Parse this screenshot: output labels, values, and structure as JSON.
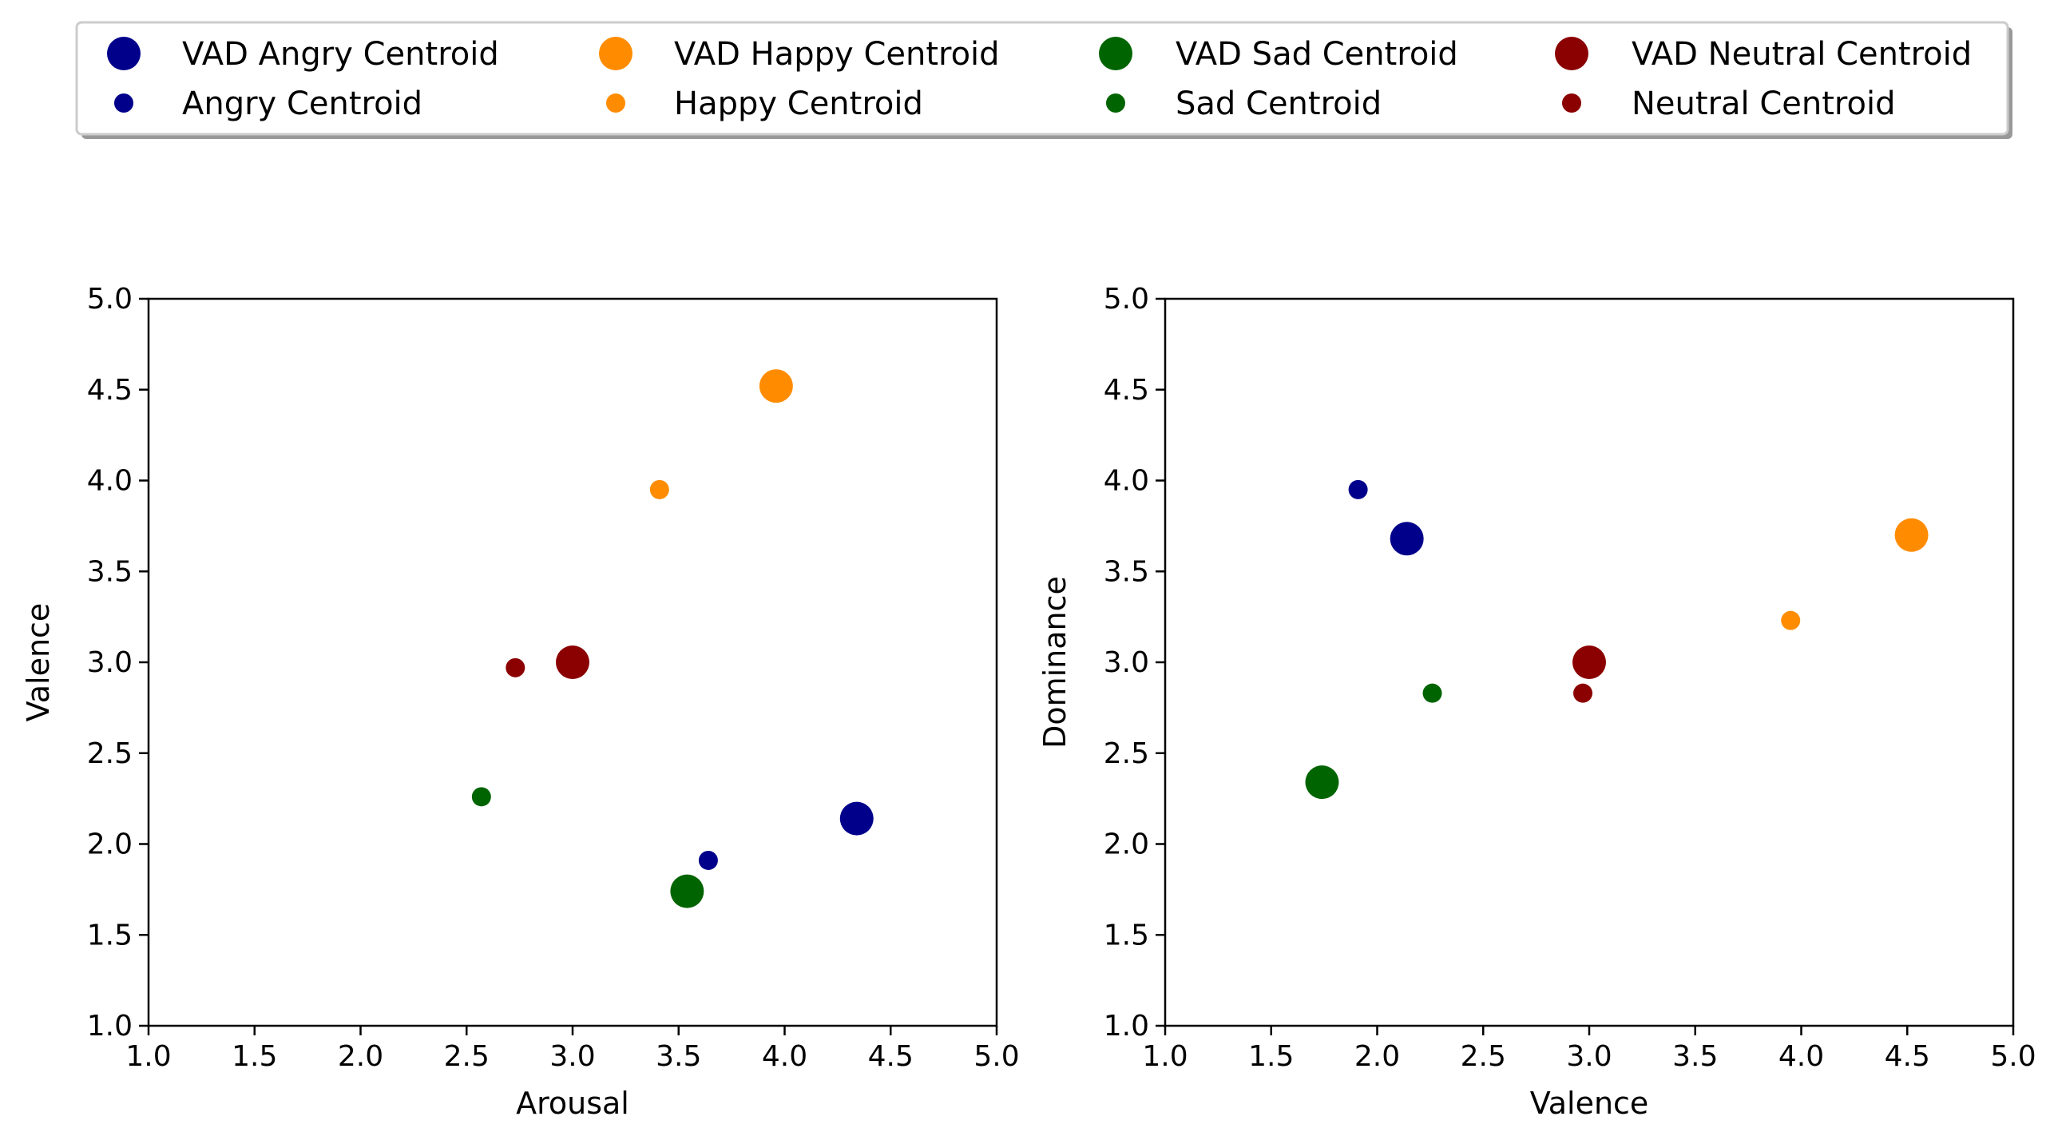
{
  "legend": {
    "items": [
      {
        "label": "VAD Angry Centroid",
        "color": "#00008b",
        "marker": "large"
      },
      {
        "label": "VAD Happy Centroid",
        "color": "#ff8c00",
        "marker": "large"
      },
      {
        "label": "VAD Sad Centroid",
        "color": "#006400",
        "marker": "large"
      },
      {
        "label": "VAD Neutral Centroid",
        "color": "#8b0000",
        "marker": "large"
      },
      {
        "label": "Angry Centroid",
        "color": "#00008b",
        "marker": "small"
      },
      {
        "label": "Happy Centroid",
        "color": "#ff8c00",
        "marker": "small"
      },
      {
        "label": "Sad Centroid",
        "color": "#006400",
        "marker": "small"
      },
      {
        "label": "Neutral Centroid",
        "color": "#8b0000",
        "marker": "small"
      }
    ]
  },
  "chart_data": [
    {
      "type": "scatter",
      "xlabel": "Arousal",
      "ylabel": "Valence",
      "xlim": [
        1.0,
        5.0
      ],
      "ylim": [
        1.0,
        5.0
      ],
      "xticks": [
        "1.0",
        "1.5",
        "2.0",
        "2.5",
        "3.0",
        "3.5",
        "4.0",
        "4.5",
        "5.0"
      ],
      "yticks": [
        "1.0",
        "1.5",
        "2.0",
        "2.5",
        "3.0",
        "3.5",
        "4.0",
        "4.5",
        "5.0"
      ],
      "grid": false,
      "series": [
        {
          "name": "VAD Angry Centroid",
          "marker": "large",
          "color": "#00008b",
          "x": 4.34,
          "y": 2.14
        },
        {
          "name": "VAD Happy Centroid",
          "marker": "large",
          "color": "#ff8c00",
          "x": 3.96,
          "y": 4.52
        },
        {
          "name": "VAD Sad Centroid",
          "marker": "large",
          "color": "#006400",
          "x": 3.54,
          "y": 1.74
        },
        {
          "name": "VAD Neutral Centroid",
          "marker": "large",
          "color": "#8b0000",
          "x": 3.0,
          "y": 3.0
        },
        {
          "name": "Angry Centroid",
          "marker": "small",
          "color": "#00008b",
          "x": 3.64,
          "y": 1.91
        },
        {
          "name": "Happy Centroid",
          "marker": "small",
          "color": "#ff8c00",
          "x": 3.41,
          "y": 3.95
        },
        {
          "name": "Sad Centroid",
          "marker": "small",
          "color": "#006400",
          "x": 2.57,
          "y": 2.26
        },
        {
          "name": "Neutral Centroid",
          "marker": "small",
          "color": "#8b0000",
          "x": 2.73,
          "y": 2.97
        }
      ]
    },
    {
      "type": "scatter",
      "xlabel": "Valence",
      "ylabel": "Dominance",
      "xlim": [
        1.0,
        5.0
      ],
      "ylim": [
        1.0,
        5.0
      ],
      "xticks": [
        "1.0",
        "1.5",
        "2.0",
        "2.5",
        "3.0",
        "3.5",
        "4.0",
        "4.5",
        "5.0"
      ],
      "yticks": [
        "1.0",
        "1.5",
        "2.0",
        "2.5",
        "3.0",
        "3.5",
        "4.0",
        "4.5",
        "5.0"
      ],
      "grid": false,
      "series": [
        {
          "name": "VAD Angry Centroid",
          "marker": "large",
          "color": "#00008b",
          "x": 2.14,
          "y": 3.68
        },
        {
          "name": "VAD Happy Centroid",
          "marker": "large",
          "color": "#ff8c00",
          "x": 4.52,
          "y": 3.7
        },
        {
          "name": "VAD Sad Centroid",
          "marker": "large",
          "color": "#006400",
          "x": 1.74,
          "y": 2.34
        },
        {
          "name": "VAD Neutral Centroid",
          "marker": "large",
          "color": "#8b0000",
          "x": 3.0,
          "y": 3.0
        },
        {
          "name": "Angry Centroid",
          "marker": "small",
          "color": "#00008b",
          "x": 1.91,
          "y": 3.95
        },
        {
          "name": "Happy Centroid",
          "marker": "small",
          "color": "#ff8c00",
          "x": 3.95,
          "y": 3.23
        },
        {
          "name": "Sad Centroid",
          "marker": "small",
          "color": "#006400",
          "x": 2.26,
          "y": 2.83
        },
        {
          "name": "Neutral Centroid",
          "marker": "small",
          "color": "#8b0000",
          "x": 2.97,
          "y": 2.83
        }
      ]
    }
  ]
}
